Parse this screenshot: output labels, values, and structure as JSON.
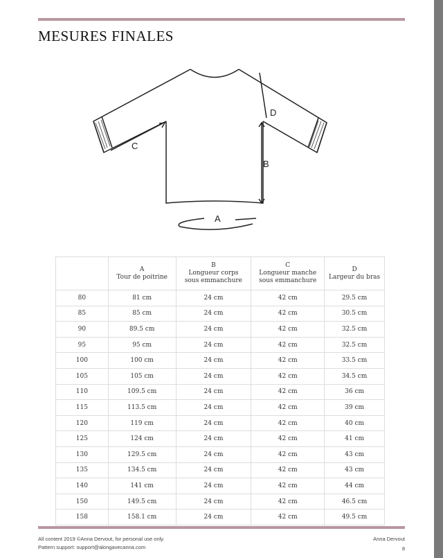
{
  "page": {
    "title": "MESURES FINALES",
    "accent_color": "#b8979f",
    "page_number": "8"
  },
  "diagram": {
    "labels": {
      "a": "A",
      "b": "B",
      "c": "C",
      "d": "D"
    }
  },
  "table": {
    "headers": [
      {
        "letter": "",
        "line1": "",
        "line2": ""
      },
      {
        "letter": "A",
        "line1": "Tour de poitrine",
        "line2": ""
      },
      {
        "letter": "B",
        "line1": "Longueur corps",
        "line2": "sous emmanchure"
      },
      {
        "letter": "C",
        "line1": "Longueur manche",
        "line2": "sous emmanchure"
      },
      {
        "letter": "D",
        "line1": "Largeur du bras",
        "line2": ""
      }
    ],
    "rows": [
      [
        "80",
        "81 cm",
        "24 cm",
        "42 cm",
        "29.5 cm"
      ],
      [
        "85",
        "85 cm",
        "24 cm",
        "42 cm",
        "30.5 cm"
      ],
      [
        "90",
        "89.5 cm",
        "24 cm",
        "42 cm",
        "32.5 cm"
      ],
      [
        "95",
        "95 cm",
        "24 cm",
        "42 cm",
        "32.5 cm"
      ],
      [
        "100",
        "100 cm",
        "24 cm",
        "42 cm",
        "33.5 cm"
      ],
      [
        "105",
        "105 cm",
        "24 cm",
        "42 cm",
        "34.5 cm"
      ],
      [
        "110",
        "109.5 cm",
        "24 cm",
        "42 cm",
        "36 cm"
      ],
      [
        "115",
        "113.5 cm",
        "24 cm",
        "42 cm",
        "39 cm"
      ],
      [
        "120",
        "119 cm",
        "24 cm",
        "42 cm",
        "40 cm"
      ],
      [
        "125",
        "124 cm",
        "24 cm",
        "42 cm",
        "41 cm"
      ],
      [
        "130",
        "129.5 cm",
        "24 cm",
        "42 cm",
        "43 cm"
      ],
      [
        "135",
        "134.5 cm",
        "24 cm",
        "42 cm",
        "43 cm"
      ],
      [
        "140",
        "141 cm",
        "24 cm",
        "42 cm",
        "44 cm"
      ],
      [
        "150",
        "149.5 cm",
        "24 cm",
        "42 cm",
        "46.5 cm"
      ],
      [
        "158",
        "158.1 cm",
        "24 cm",
        "42 cm",
        "49.5 cm"
      ]
    ]
  },
  "footer": {
    "copyright": "All content 2019 ©Anna Dervout, for personal use only.",
    "support": "Pattern support: support@alongavecanna.com",
    "author": "Anna Dervout",
    "page_number": "8"
  }
}
